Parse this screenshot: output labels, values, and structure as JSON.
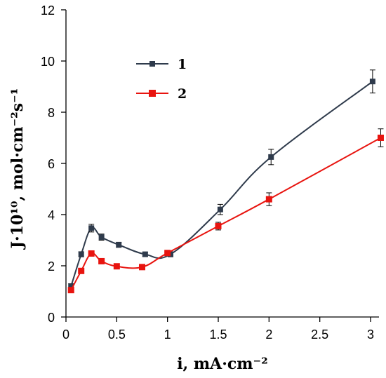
{
  "chart_data": {
    "type": "line",
    "title": "",
    "xlabel": "i, mA·cm⁻²",
    "ylabel": "J·10¹⁰, mol·cm⁻²s⁻¹",
    "xlim": [
      0,
      3.1
    ],
    "ylim": [
      0,
      12
    ],
    "x_ticks": [
      "0",
      "0.5",
      "1",
      "1.5",
      "2",
      "2.5",
      "3"
    ],
    "y_ticks": [
      "0",
      "2",
      "4",
      "6",
      "8",
      "10",
      "12"
    ],
    "x_tick_values": [
      0,
      0.5,
      1,
      1.5,
      2,
      2.5,
      3
    ],
    "y_tick_values": [
      0,
      2,
      4,
      6,
      8,
      10,
      12
    ],
    "grid": false,
    "legend_position": "top-left",
    "series": [
      {
        "name": "1",
        "color": "#2f3b4c",
        "marker": "square",
        "points": [
          {
            "x": 0.05,
            "y": 1.2,
            "err": 0.1
          },
          {
            "x": 0.15,
            "y": 2.45,
            "err": 0.1
          },
          {
            "x": 0.25,
            "y": 3.47,
            "err": 0.15
          },
          {
            "x": 0.35,
            "y": 3.12,
            "err": 0.12
          },
          {
            "x": 0.52,
            "y": 2.82,
            "err": 0.1
          },
          {
            "x": 0.78,
            "y": 2.45,
            "err": 0.08
          },
          {
            "x": 1.03,
            "y": 2.45,
            "err": 0.1
          },
          {
            "x": 1.52,
            "y": 4.2,
            "err": 0.2
          },
          {
            "x": 2.02,
            "y": 6.25,
            "err": 0.3
          },
          {
            "x": 3.02,
            "y": 9.2,
            "err": 0.45
          }
        ]
      },
      {
        "name": "2",
        "color": "#e8140f",
        "marker": "square",
        "points": [
          {
            "x": 0.05,
            "y": 1.05,
            "err": 0.1
          },
          {
            "x": 0.15,
            "y": 1.8,
            "err": 0.1
          },
          {
            "x": 0.25,
            "y": 2.48,
            "err": 0.1
          },
          {
            "x": 0.35,
            "y": 2.18,
            "err": 0.1
          },
          {
            "x": 0.5,
            "y": 1.98,
            "err": 0.08
          },
          {
            "x": 0.75,
            "y": 1.95,
            "err": 0.08
          },
          {
            "x": 1.0,
            "y": 2.5,
            "err": 0.1
          },
          {
            "x": 1.5,
            "y": 3.55,
            "err": 0.15
          },
          {
            "x": 2.0,
            "y": 4.6,
            "err": 0.25
          },
          {
            "x": 3.1,
            "y": 7.0,
            "err": 0.35
          }
        ]
      }
    ]
  }
}
